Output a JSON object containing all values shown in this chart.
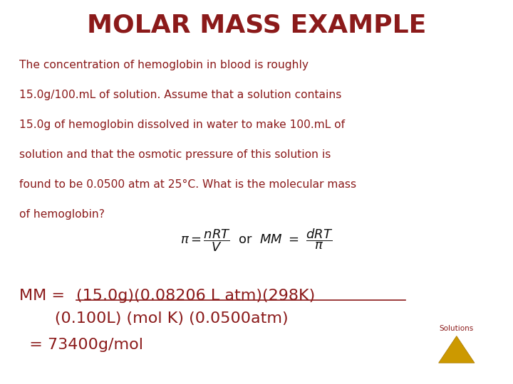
{
  "background_color": "#ffffff",
  "title": "MOLAR MASS EXAMPLE",
  "title_color": "#8B1A1A",
  "title_fontsize": 26,
  "title_fontweight": "bold",
  "body_color": "#8B1A1A",
  "body_fontsize": 11.2,
  "body_text_lines": [
    "The concentration of hemoglobin in blood is roughly",
    "15.0g/100.mL of solution. Assume that a solution contains",
    "15.0g of hemoglobin dissolved in water to make 100.mL of",
    "solution and that the osmotic pressure of this solution is",
    "found to be 0.0500 atm at 25°C. What is the molecular mass",
    "of hemoglobin?"
  ],
  "formula_fontsize": 13,
  "result_prefix": "MM = ",
  "result_underlined": "(15.0g)(0.08206 L atm)(298K)",
  "result_line2": "       (0.100L) (mol K) (0.0500atm)",
  "result_line3": "  = 73400g/mol",
  "result_fontsize": 16,
  "triangle_color": "#CC9900",
  "triangle_edge_color": "#AA7700",
  "solutions_text": "Solutions",
  "solutions_fontsize": 7.5
}
